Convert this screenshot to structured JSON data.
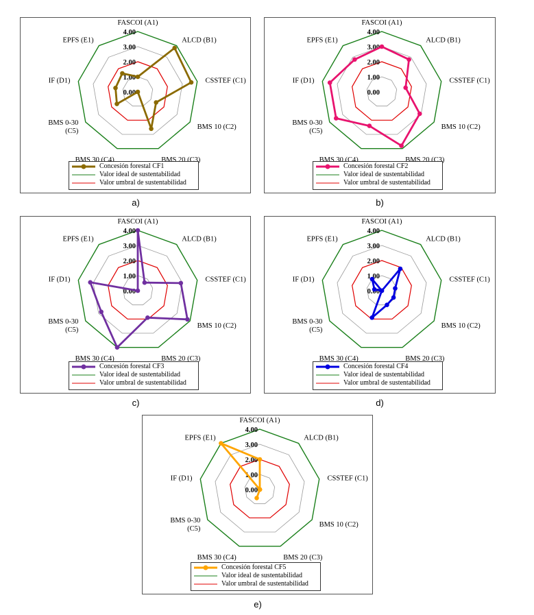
{
  "axes": [
    "FASCOI (A1)",
    "ALCD (B1)",
    "CSSTEF (C1)",
    "BMS 10 (C2)",
    "BMS 20 (C3)",
    "BMS 30 (C4)",
    "BMS 0-30 (C5)",
    "IF (D1)",
    "EPFS (E1)"
  ],
  "tick_labels": [
    "0.00",
    "1.00",
    "2.00",
    "3.00",
    "4.00"
  ],
  "rmax": 4,
  "ideal_value": 4,
  "threshold_value": 2,
  "legend_ideal": "Valor ideal de sustentabilidad",
  "legend_threshold": "Valor umbral de sustentabilidad",
  "colors": {
    "ideal": "#1a7f1a",
    "threshold": "#e00000",
    "grid": "#9a9a9a"
  },
  "chart_data": [
    {
      "type": "radar",
      "panel": "a)",
      "series": [
        {
          "name": "Concesión forestal CF1",
          "color": "#8b6a00",
          "values": [
            1.0,
            3.8,
            3.6,
            1.4,
            2.6,
            0.0,
            1.6,
            1.5,
            1.6
          ]
        }
      ]
    },
    {
      "type": "radar",
      "panel": "b)",
      "series": [
        {
          "name": "Concesión forestal CF2",
          "color": "#e8136e",
          "values": [
            3.0,
            2.8,
            1.6,
            2.9,
            3.8,
            2.4,
            3.5,
            3.5,
            2.8
          ]
        }
      ]
    },
    {
      "type": "radar",
      "panel": "c)",
      "series": [
        {
          "name": "Concesión forestal CF3",
          "color": "#7030a0",
          "values": [
            4.0,
            0.7,
            2.9,
            3.8,
            1.9,
            4.0,
            2.8,
            3.2,
            0.0
          ]
        }
      ]
    },
    {
      "type": "radar",
      "panel": "d)",
      "series": [
        {
          "name": "Concesión forestal CF4",
          "color": "#0000e0",
          "values": [
            0.0,
            1.9,
            0.9,
            0.9,
            1.0,
            1.9,
            0.0,
            0.5,
            1.0
          ]
        }
      ]
    },
    {
      "type": "radar",
      "panel": "e)",
      "series": [
        {
          "name": "Concesión forestal CF5",
          "color": "#ffa500",
          "values": [
            2.0,
            0.0,
            0.0,
            0.0,
            0.0,
            0.6,
            0.0,
            0.0,
            4.0
          ]
        }
      ]
    }
  ]
}
